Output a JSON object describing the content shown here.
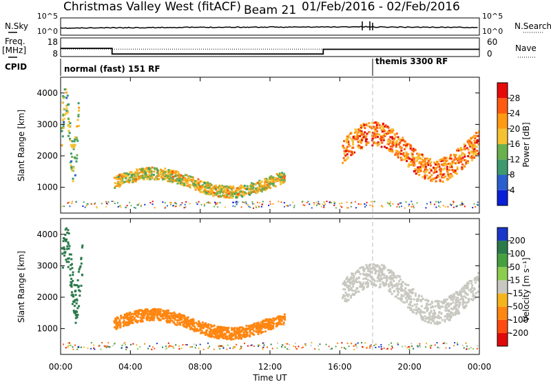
{
  "header": {
    "station": "Christmas Valley West (fitACF)",
    "beam": "Beam 21",
    "dates": "01/Feb/2016 - 02/Feb/2016"
  },
  "labels": {
    "nsky": "N.Sky",
    "nsearch": "N.Search",
    "freq_line1": "Freq.",
    "freq_line2": "[MHz]",
    "nave": "Nave",
    "cpid": "CPID",
    "cpid_left": "normal (fast) 151 RF",
    "cpid_right": "themis 3300 RF",
    "slant_range": "Slant Range [km]",
    "time_axis": "Time UT",
    "power_bar": "Power [dB]",
    "velocity_bar": "Velocity [m s⁻¹]"
  },
  "strip_ticks": {
    "noise_left": [
      "10^5",
      "10^0"
    ],
    "noise_right": [
      "10^5",
      "10^0"
    ],
    "freq_left": [
      "18",
      "8"
    ],
    "freq_right": [
      "60",
      "0"
    ]
  },
  "colors": {
    "power": [
      "#0a1fd8",
      "#2a5fd0",
      "#3d9a6e",
      "#6ab04c",
      "#f5c232",
      "#ff9a12",
      "#ff5a10",
      "#e50a0a"
    ],
    "velocity": [
      "#1a36c8",
      "#2a7a4a",
      "#46a040",
      "#8ccd50",
      "#c8c8c0",
      "#f6b41c",
      "#ff8610",
      "#ff4a10",
      "#e00a0a"
    ]
  },
  "chart_data": [
    {
      "type": "line",
      "title": "N.Sky / N.Search",
      "x_range": [
        "00:00",
        "00:00"
      ],
      "yscale": "log",
      "ylim_left": [
        1,
        100000
      ],
      "series": [
        {
          "name": "N.Sky",
          "x_hours": [
            0,
            3,
            6,
            9,
            12,
            15,
            17.5,
            18,
            20,
            22,
            24
          ],
          "values": [
            80,
            120,
            150,
            180,
            200,
            220,
            260,
            230,
            200,
            180,
            160
          ]
        }
      ]
    },
    {
      "type": "line",
      "title": "Freq. / Nave",
      "ylim_left": [
        8,
        18
      ],
      "ylim_right": [
        0,
        60
      ],
      "series": [
        {
          "name": "Freq.",
          "x_hours": [
            0,
            2.95,
            2.95,
            15.05,
            15.05,
            24
          ],
          "values": [
            15,
            15,
            10.2,
            10.2,
            14.2,
            14.2
          ]
        },
        {
          "name": "Nave",
          "x_hours": [
            0,
            24
          ],
          "values": [
            38,
            38
          ]
        }
      ]
    },
    {
      "type": "heatmap",
      "title": "Power",
      "ylabel": "Slant Range [km]",
      "ylim": [
        180,
        4500
      ],
      "yticks": [
        1000,
        2000,
        3000,
        4000
      ],
      "color_scale": {
        "label": "Power [dB]",
        "min": 0,
        "max": 32,
        "ticks": [
          4,
          8,
          12,
          16,
          20,
          24,
          28
        ]
      },
      "features": [
        {
          "name": "early echo",
          "x_hours": [
            0.0,
            1.0
          ],
          "range_km": [
            1400,
            4200
          ],
          "value": 14
        },
        {
          "name": "main arc",
          "x_hours": [
            3.0,
            12.8
          ],
          "range_km": [
            750,
            1600
          ],
          "value": 18
        },
        {
          "name": "evening band",
          "x_hours": [
            16.1,
            24.0
          ],
          "range_km": [
            1300,
            3000
          ],
          "value": 24
        }
      ]
    },
    {
      "type": "heatmap",
      "title": "Velocity",
      "ylabel": "Slant Range [km]",
      "ylim": [
        180,
        4500
      ],
      "yticks": [
        1000,
        2000,
        3000,
        4000
      ],
      "color_scale": {
        "label": "Velocity [m s⁻¹]",
        "ticks": [
          200,
          100,
          50,
          15,
          -15,
          -50,
          -100,
          -200
        ]
      },
      "features": [
        {
          "name": "early echo",
          "x_hours": [
            0.0,
            1.2
          ],
          "range_km": [
            1400,
            4200
          ],
          "value": 150
        },
        {
          "name": "main arc",
          "x_hours": [
            3.0,
            12.8
          ],
          "range_km": [
            750,
            1600
          ],
          "value": -60
        },
        {
          "name": "evening band",
          "x_hours": [
            16.1,
            24.0
          ],
          "range_km": [
            1300,
            3000
          ],
          "value": 0
        }
      ]
    }
  ],
  "x_ticks": [
    "00:00",
    "04:00",
    "08:00",
    "12:00",
    "16:00",
    "20:00",
    "00:00"
  ],
  "tick_hours": [
    0,
    4,
    8,
    12,
    16,
    20,
    24
  ]
}
